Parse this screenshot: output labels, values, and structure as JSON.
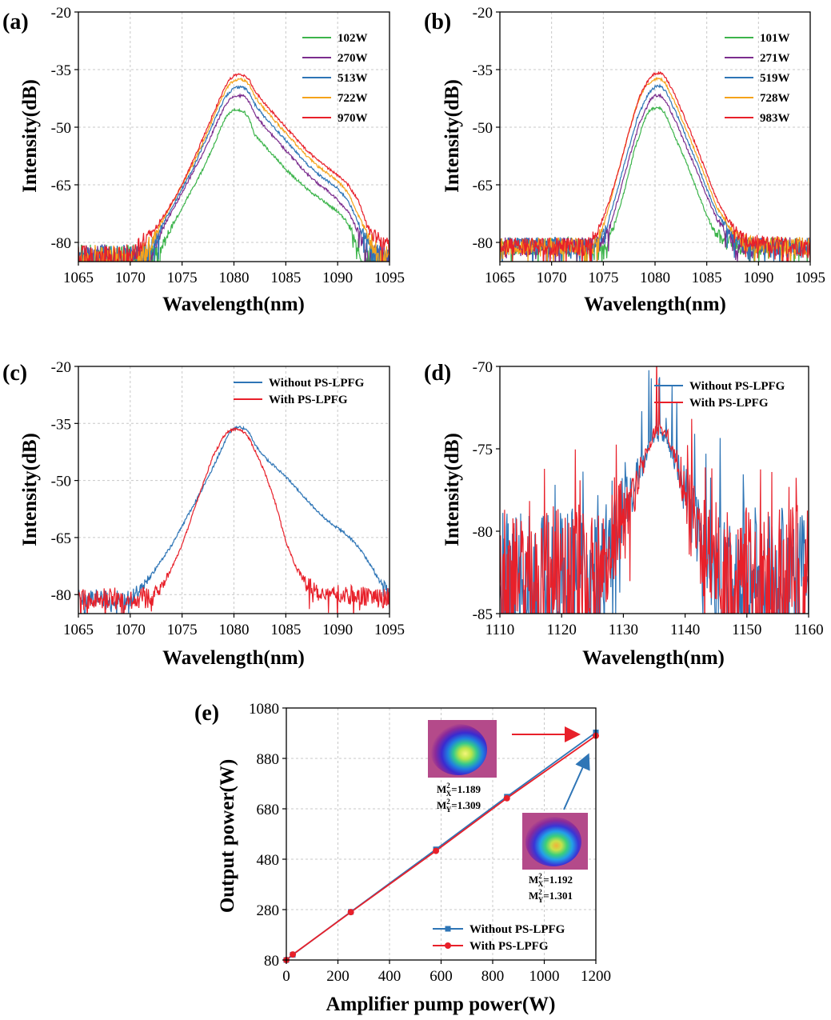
{
  "figure": {
    "label": ""
  },
  "chart_data": [
    {
      "id": "a",
      "panel_label": "(a)",
      "type": "line",
      "xlabel": "Wavelength(nm)",
      "ylabel": "Intensity(dB)",
      "xlim": [
        1065,
        1095
      ],
      "ylim": [
        -85,
        -20
      ],
      "grid": true,
      "legend": "top-right",
      "xticks": [
        1065,
        1070,
        1075,
        1080,
        1085,
        1090,
        1095
      ],
      "yticks": [
        -80,
        -65,
        -50,
        -35,
        -20
      ],
      "series": [
        {
          "name": "102W",
          "color": "#3cb44b",
          "noise_floor": -82,
          "noise_amp": 2.5,
          "x": [
            1072.6,
            1073.2,
            1074,
            1075,
            1076,
            1077,
            1078,
            1079,
            1079.5,
            1080,
            1080.5,
            1081,
            1081.5,
            1082,
            1083,
            1084,
            1085,
            1086,
            1087,
            1088,
            1089,
            1090,
            1091,
            1091.8,
            1092.5
          ],
          "y": [
            -84,
            -80,
            -76,
            -71,
            -66,
            -61,
            -55,
            -48.5,
            -46.5,
            -45.5,
            -45.5,
            -46,
            -48,
            -52,
            -55,
            -58,
            -61,
            -63.5,
            -66,
            -68,
            -70,
            -72,
            -75,
            -80,
            -84
          ]
        },
        {
          "name": "270W",
          "color": "#7b2d8e",
          "noise_floor": -82,
          "noise_amp": 2.5,
          "x": [
            1071.8,
            1072.5,
            1073,
            1074,
            1075,
            1076,
            1077,
            1078,
            1079,
            1079.5,
            1080,
            1080.5,
            1081,
            1081.5,
            1082,
            1083,
            1084,
            1085,
            1086,
            1087,
            1088,
            1089,
            1090,
            1091,
            1092,
            1093
          ],
          "y": [
            -84,
            -80,
            -77,
            -72,
            -67,
            -62,
            -57,
            -51,
            -45,
            -43,
            -42,
            -41.8,
            -42,
            -43.5,
            -46.5,
            -50,
            -53,
            -56,
            -59,
            -62,
            -64.5,
            -66.5,
            -69,
            -72,
            -77,
            -84
          ]
        },
        {
          "name": "513W",
          "color": "#2e75b6",
          "noise_floor": -82,
          "noise_amp": 2.5,
          "x": [
            1071.5,
            1072.3,
            1073,
            1074,
            1075,
            1076,
            1077,
            1078,
            1079,
            1079.5,
            1080,
            1080.5,
            1081,
            1081.5,
            1082,
            1083,
            1084,
            1085,
            1086,
            1087,
            1088,
            1089,
            1090,
            1091,
            1092,
            1093.5
          ],
          "y": [
            -84,
            -80,
            -76,
            -71,
            -66,
            -61,
            -55,
            -49,
            -43,
            -41,
            -39.8,
            -39.5,
            -39.8,
            -41,
            -44,
            -47.5,
            -50.5,
            -53.5,
            -56.5,
            -59.5,
            -62,
            -64,
            -66,
            -69,
            -75,
            -84
          ]
        },
        {
          "name": "722W",
          "color": "#f5a31a",
          "noise_floor": -82,
          "noise_amp": 2.5,
          "x": [
            1071,
            1072,
            1073,
            1074,
            1075,
            1076,
            1077,
            1078,
            1079,
            1079.5,
            1080,
            1080.5,
            1081,
            1081.5,
            1082,
            1083,
            1084,
            1085,
            1086,
            1087,
            1088,
            1089,
            1090,
            1091,
            1092,
            1094
          ],
          "y": [
            -84,
            -80,
            -75,
            -70,
            -65,
            -60,
            -54,
            -47.5,
            -41.5,
            -39,
            -37.8,
            -37.5,
            -37.8,
            -39,
            -42,
            -45.5,
            -48.5,
            -51.5,
            -54.5,
            -57.5,
            -60,
            -62,
            -64,
            -67,
            -73,
            -84
          ]
        },
        {
          "name": "970W",
          "color": "#e8202a",
          "noise_floor": -82,
          "noise_amp": 2.5,
          "x": [
            1069.5,
            1070.5,
            1071.5,
            1072.5,
            1073.5,
            1075,
            1076,
            1077,
            1078,
            1079,
            1079.5,
            1080,
            1080.5,
            1081,
            1081.5,
            1082,
            1083,
            1084,
            1085,
            1086,
            1087,
            1088,
            1089,
            1090,
            1091,
            1092,
            1093,
            1095
          ],
          "y": [
            -84,
            -82,
            -79,
            -76,
            -72,
            -65,
            -59,
            -53,
            -46.5,
            -40.5,
            -37.8,
            -36.5,
            -36.3,
            -36.5,
            -37.8,
            -40.5,
            -44,
            -47,
            -50,
            -53,
            -56,
            -58.5,
            -60.5,
            -62.5,
            -65,
            -69,
            -77,
            -82
          ]
        }
      ]
    },
    {
      "id": "b",
      "panel_label": "(b)",
      "type": "line",
      "xlabel": "Wavelength(nm)",
      "ylabel": "Intensity(dB)",
      "xlim": [
        1065,
        1095
      ],
      "ylim": [
        -85,
        -20
      ],
      "grid": true,
      "legend": "top-right",
      "xticks": [
        1065,
        1070,
        1075,
        1080,
        1085,
        1090,
        1095
      ],
      "yticks": [
        -80,
        -65,
        -50,
        -35,
        -20
      ],
      "series": [
        {
          "name": "101W",
          "color": "#3cb44b",
          "noise_floor": -81,
          "noise_amp": 2,
          "x": [
            1065,
            1075,
            1076,
            1077,
            1078,
            1079,
            1079.5,
            1080,
            1080.5,
            1081,
            1082,
            1083,
            1084,
            1085,
            1085.6,
            1086.5,
            1087.5,
            1088.5,
            1095
          ],
          "y": [
            -81,
            -81,
            -76,
            -67,
            -56,
            -48,
            -45.5,
            -45,
            -45.2,
            -46.5,
            -53,
            -59,
            -66,
            -73,
            -77,
            -79,
            -80.5,
            -81,
            -81
          ]
        },
        {
          "name": "271W",
          "color": "#7b2d8e",
          "noise_floor": -81,
          "noise_amp": 2,
          "x": [
            1065,
            1074.5,
            1075.5,
            1076.5,
            1077.5,
            1078.5,
            1079.5,
            1080,
            1080.5,
            1081,
            1082,
            1083,
            1084,
            1085,
            1086,
            1087,
            1088,
            1089,
            1095
          ],
          "y": [
            -81,
            -81,
            -77,
            -68,
            -58,
            -49,
            -43,
            -41.8,
            -41.8,
            -43,
            -48.5,
            -55,
            -61,
            -68,
            -74,
            -78,
            -80.5,
            -81,
            -81
          ]
        },
        {
          "name": "519W",
          "color": "#2e75b6",
          "noise_floor": -81,
          "noise_amp": 2,
          "x": [
            1065,
            1074.3,
            1075.3,
            1076.3,
            1077.3,
            1078.3,
            1079.3,
            1080,
            1080.5,
            1081,
            1082,
            1083,
            1084,
            1085,
            1086,
            1087,
            1088,
            1089,
            1095
          ],
          "y": [
            -81,
            -81,
            -76,
            -67,
            -57,
            -47.5,
            -41.5,
            -39.5,
            -39.3,
            -40.5,
            -46,
            -52.5,
            -59,
            -66,
            -72.5,
            -76.5,
            -79.5,
            -81,
            -81
          ]
        },
        {
          "name": "728W",
          "color": "#f5a31a",
          "noise_floor": -81,
          "noise_amp": 2,
          "x": [
            1065,
            1074,
            1075,
            1076,
            1077,
            1078,
            1079,
            1080,
            1080.5,
            1081,
            1082,
            1083,
            1084,
            1085,
            1086,
            1087,
            1088,
            1089,
            1095
          ],
          "y": [
            -81,
            -81,
            -76,
            -66,
            -56,
            -46,
            -39.5,
            -37.5,
            -37.3,
            -38.5,
            -44,
            -50.5,
            -57,
            -64,
            -71,
            -75,
            -78.5,
            -80.5,
            -81
          ]
        },
        {
          "name": "983W",
          "color": "#e8202a",
          "noise_floor": -81,
          "noise_amp": 2,
          "x": [
            1065,
            1073.5,
            1074.5,
            1075.5,
            1076.5,
            1077.5,
            1078.5,
            1079.5,
            1080,
            1080.5,
            1081,
            1082,
            1083,
            1084,
            1085,
            1086,
            1087,
            1088,
            1089,
            1095
          ],
          "y": [
            -81,
            -81,
            -77,
            -70,
            -61,
            -51,
            -42,
            -37,
            -36,
            -35.8,
            -37,
            -42,
            -48.5,
            -55,
            -62,
            -69,
            -74,
            -77.5,
            -80,
            -81
          ]
        }
      ]
    },
    {
      "id": "c",
      "panel_label": "(c)",
      "type": "line",
      "xlabel": "Wavelength(nm)",
      "ylabel": "Intensity(dB)",
      "xlim": [
        1065,
        1095
      ],
      "ylim": [
        -85,
        -20
      ],
      "grid": true,
      "legend": "top-right",
      "xticks": [
        1065,
        1070,
        1075,
        1080,
        1085,
        1090,
        1095
      ],
      "yticks": [
        -80,
        -65,
        -50,
        -35,
        -20
      ],
      "series": [
        {
          "name": "Without PS-LPFG",
          "color": "#2e75b6",
          "noise_floor": -81,
          "noise_amp": 2,
          "x": [
            1065,
            1070,
            1071,
            1072,
            1073,
            1074,
            1075,
            1076,
            1077,
            1078,
            1079,
            1079.5,
            1080,
            1080.5,
            1081,
            1081.5,
            1082,
            1083,
            1084,
            1085,
            1086,
            1087,
            1088,
            1089,
            1090,
            1091,
            1092,
            1093,
            1094,
            1095
          ],
          "y": [
            -81,
            -81,
            -78.5,
            -75,
            -71,
            -67,
            -62,
            -57,
            -52,
            -46.5,
            -40.5,
            -37.5,
            -36.3,
            -36,
            -36.3,
            -37.5,
            -40.5,
            -44,
            -46.5,
            -49,
            -52,
            -55,
            -58,
            -60.5,
            -62.5,
            -64.5,
            -67.5,
            -71.5,
            -76,
            -79
          ]
        },
        {
          "name": "With PS-LPFG",
          "color": "#e8202a",
          "noise_floor": -81,
          "noise_amp": 2.5,
          "x": [
            1065,
            1072,
            1073,
            1074,
            1075,
            1076,
            1077,
            1078,
            1079,
            1079.5,
            1080,
            1080.5,
            1081,
            1081.5,
            1082,
            1083,
            1084,
            1085,
            1086,
            1087,
            1088,
            1095
          ],
          "y": [
            -81,
            -81,
            -78,
            -73,
            -67,
            -59,
            -51,
            -43.5,
            -38.5,
            -37,
            -36.5,
            -36.6,
            -37.3,
            -39,
            -42,
            -48,
            -56,
            -66,
            -73,
            -77,
            -79,
            -81
          ]
        }
      ]
    },
    {
      "id": "d",
      "panel_label": "(d)",
      "type": "line",
      "xlabel": "Wavelength(nm)",
      "ylabel": "Intensity(dB)",
      "xlim": [
        1110,
        1160
      ],
      "ylim": [
        -85,
        -70
      ],
      "grid": false,
      "legend": "top-right",
      "xticks": [
        1110,
        1120,
        1130,
        1140,
        1150,
        1160
      ],
      "yticks": [
        -85,
        -80,
        -75,
        -70
      ],
      "series": [
        {
          "name": "Without PS-LPFG",
          "color": "#2e75b6",
          "noise_floor": -83,
          "noise_amp": 4,
          "x": [
            1110,
            1126,
            1128,
            1130,
            1132,
            1134,
            1135,
            1136,
            1137,
            1138,
            1140,
            1142,
            1144,
            1146,
            1160
          ],
          "y": [
            -83,
            -83,
            -80,
            -78.5,
            -77,
            -75,
            -74.3,
            -74.2,
            -74.5,
            -75.5,
            -77.5,
            -80,
            -81.5,
            -82.5,
            -83
          ]
        },
        {
          "name": "With PS-LPFG",
          "color": "#e8202a",
          "noise_floor": -83,
          "noise_amp": 4,
          "x": [
            1110,
            1126,
            1128,
            1130,
            1132,
            1134,
            1135,
            1136,
            1137,
            1138,
            1140,
            1142,
            1144,
            1146,
            1160
          ],
          "y": [
            -83,
            -83,
            -80.5,
            -79,
            -77.5,
            -75,
            -74,
            -73.8,
            -74,
            -75,
            -77.5,
            -80,
            -81.5,
            -82.5,
            -83
          ]
        }
      ]
    },
    {
      "id": "e",
      "panel_label": "(e)",
      "type": "line",
      "xlabel": "Amplifier pump power(W)",
      "ylabel": "Output power(W)",
      "xlim": [
        0,
        1200
      ],
      "ylim": [
        80,
        1080
      ],
      "grid": true,
      "legend": "bottom-right",
      "xticks": [
        0,
        200,
        400,
        600,
        800,
        1000,
        1200
      ],
      "yticks": [
        80,
        280,
        480,
        680,
        880,
        1080
      ],
      "series": [
        {
          "name": "Without PS-LPFG",
          "color": "#2e75b6",
          "marker": "square",
          "x": [
            0,
            25,
            250,
            580,
            855,
            1200
          ],
          "y": [
            80,
            101,
            271,
            519,
            728,
            983
          ]
        },
        {
          "name": "With PS-LPFG",
          "color": "#e8202a",
          "marker": "circle",
          "x": [
            0,
            25,
            250,
            580,
            855,
            1200
          ],
          "y": [
            80,
            102,
            270,
            513,
            722,
            970
          ]
        }
      ],
      "insets": [
        {
          "label_x_base": "M",
          "label_x_sup": "2",
          "label_x_sub": "X",
          "label_x_val": "=1.189",
          "label_y_base": "M",
          "label_y_sup": "2",
          "label_y_sub": "Y",
          "label_y_val": "=1.309",
          "arrow_color": "#e8202a"
        },
        {
          "label_x_base": "M",
          "label_x_sup": "2",
          "label_x_sub": "X",
          "label_x_val": "=1.192",
          "label_y_base": "M",
          "label_y_sup": "2",
          "label_y_sub": "Y",
          "label_y_val": "=1.301",
          "arrow_color": "#2e75b6"
        }
      ]
    }
  ]
}
